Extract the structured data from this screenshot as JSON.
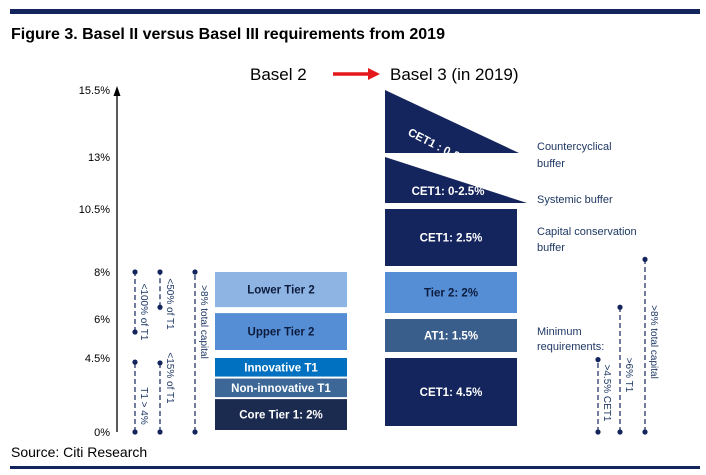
{
  "title": "Figure 3. Basel II versus Basel III requirements from 2019",
  "source": "Source: Citi Research",
  "colors": {
    "navy": "#14245c",
    "dark": "#1b2a4f",
    "light_blue": "#8eb4e3",
    "mid_blue": "#558ed5",
    "steel": "#3c6797",
    "bright": "#0070c0",
    "slate": "#3a5e8c",
    "arrow": "#e3191b"
  },
  "chart_data": {
    "type": "bar",
    "header": {
      "left": "Basel 2",
      "right": "Basel 3 (in 2019)"
    },
    "y_ticks": [
      {
        "value": 0,
        "label": "0%"
      },
      {
        "value": 4.5,
        "label": "4.5%"
      },
      {
        "value": 6,
        "label": "6%"
      },
      {
        "value": 8,
        "label": "8%"
      },
      {
        "value": 10.5,
        "label": "10.5%"
      },
      {
        "value": 13,
        "label": "13%"
      },
      {
        "value": 15.5,
        "label": "15.5%"
      }
    ],
    "ylim": [
      0,
      15.5
    ],
    "basel2": [
      {
        "label": "Core Tier 1: 2%",
        "from": 0,
        "to": 2
      },
      {
        "label": "Non-innovative T1",
        "from": 2,
        "to": 3.25
      },
      {
        "label": "Innovative T1",
        "from": 3.25,
        "to": 4.5
      },
      {
        "label": "Upper Tier 2",
        "from": 4.5,
        "to": 6.25
      },
      {
        "label": "Lower Tier 2",
        "from": 6.25,
        "to": 8
      }
    ],
    "basel3": [
      {
        "label": "CET1: 4.5%",
        "from": 0,
        "to": 4.5
      },
      {
        "label": "AT1: 1.5%",
        "from": 4.5,
        "to": 6
      },
      {
        "label": "Tier 2: 2%",
        "from": 6,
        "to": 8
      },
      {
        "label": "CET1: 2.5%",
        "from": 8,
        "to": 10.5
      },
      {
        "label": "CET1: 0-2.5%",
        "from": 10.5,
        "to": 13
      },
      {
        "label": "CET1 : 0-2.5%",
        "from": 13,
        "to": 15.5
      }
    ],
    "basel3_side_labels": [
      {
        "text": [
          "Countercyclical",
          "buffer"
        ]
      },
      {
        "text": [
          "Systemic buffer"
        ]
      },
      {
        "text": [
          "Capital conservation",
          "buffer"
        ]
      },
      {
        "text": [
          "Minimum",
          "requirements:"
        ]
      }
    ],
    "basel2_constraints": [
      "<100% of T1",
      "T1 > 4%",
      "<50% of T1",
      "<15% of T1",
      ">8% total capital"
    ],
    "basel3_constraints": [
      ">4.5% CET1",
      ">6% T1",
      ">8% total capital"
    ]
  }
}
